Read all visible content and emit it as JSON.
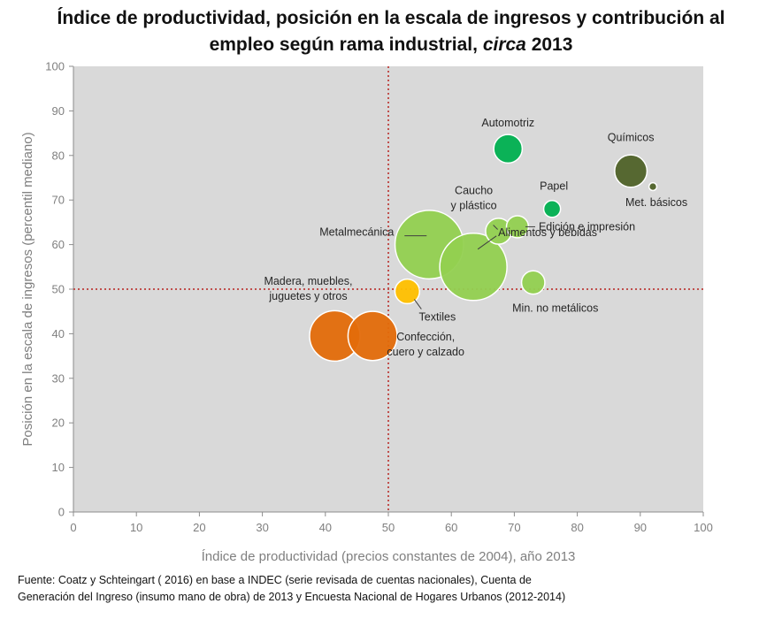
{
  "title": {
    "line1": "Índice de productividad, posición en la escala de ingresos y contribución al",
    "line2_prefix": "empleo según rama industrial, ",
    "line2_italic": "circa",
    "line2_suffix": " 2013"
  },
  "source": {
    "line1": "Fuente: Coatz y Schteingart ( 2016) en base a INDEC (serie revisada de cuentas nacionales), Cuenta de",
    "line2": "Generación del Ingreso (insumo mano de obra) de 2013 y Encuesta Nacional de Hogares Urbanos (2012-2014)"
  },
  "chart_data": {
    "type": "scatter",
    "bubble": true,
    "xlabel": "Índice de productividad (precios constantes de 2004), año 2013",
    "ylabel": "Posición en la escala de ingresos (percentil mediano)",
    "xlim": [
      0,
      100
    ],
    "ylim": [
      0,
      100
    ],
    "xticks": [
      "0",
      "10",
      "20",
      "30",
      "40",
      "50",
      "60",
      "70",
      "80",
      "90",
      "100"
    ],
    "yticks": [
      "0",
      "10",
      "20",
      "30",
      "40",
      "50",
      "60",
      "70",
      "80",
      "90",
      "100"
    ],
    "reference_lines": {
      "x": 50,
      "y": 50
    },
    "plot_background": "#d9d9d9",
    "points": [
      {
        "label": "Metalmecánica",
        "x": 56.5,
        "y": 60,
        "size": 51,
        "color": "#92d050"
      },
      {
        "label": "Alimentos y bebidas",
        "x": 63.5,
        "y": 55,
        "size": 50,
        "color": "#92d050"
      },
      {
        "label": "Madera, muebles, juguetes y otros",
        "x": 41.5,
        "y": 39.5,
        "size": 37,
        "color": "#e36c09"
      },
      {
        "label": "Confección, cuero y calzado",
        "x": 47.5,
        "y": 39.5,
        "size": 36,
        "color": "#e36c09"
      },
      {
        "label": "Químicos",
        "x": 88.5,
        "y": 76.5,
        "size": 23,
        "color": "#4f6228"
      },
      {
        "label": "Automotriz",
        "x": 69,
        "y": 81.5,
        "size": 20,
        "color": "#00b050"
      },
      {
        "label": "Caucho y plástico",
        "x": 67.5,
        "y": 63,
        "size": 18,
        "color": "#92d050"
      },
      {
        "label": "Edición e impresión",
        "x": 70.5,
        "y": 64,
        "size": 15,
        "color": "#92d050"
      },
      {
        "label": "Min. no metálicos",
        "x": 73,
        "y": 51.5,
        "size": 16,
        "color": "#92d050"
      },
      {
        "label": "Textiles",
        "x": 53,
        "y": 49.5,
        "size": 17,
        "color": "#ffc000"
      },
      {
        "label": "Papel",
        "x": 76,
        "y": 68,
        "size": 11,
        "color": "#00b050"
      },
      {
        "label": "Met. básicos",
        "x": 92,
        "y": 73,
        "size": 4,
        "color": "#4f6228"
      }
    ]
  }
}
